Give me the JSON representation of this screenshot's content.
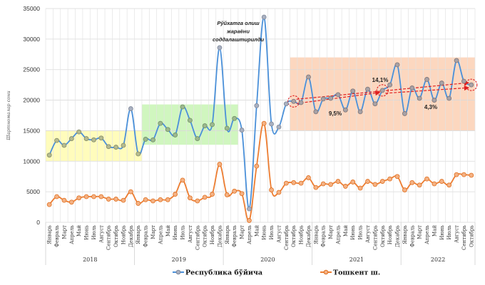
{
  "chart_data": {
    "type": "line",
    "title": "",
    "ylabel": "Шартномалар сони",
    "xlabel": "",
    "ylim": [
      0,
      35000
    ],
    "yticks": [
      0,
      5000,
      10000,
      15000,
      20000,
      25000,
      30000,
      35000
    ],
    "grid": true,
    "legend_position": "bottom",
    "years": [
      {
        "label": "2018",
        "months": 12
      },
      {
        "label": "2019",
        "months": 12
      },
      {
        "label": "2020",
        "months": 12
      },
      {
        "label": "2021",
        "months": 12
      },
      {
        "label": "2022",
        "months": 10
      }
    ],
    "categories": [
      "Январь",
      "Февраль",
      "Март",
      "Апрель",
      "Май",
      "Июнь",
      "Июль",
      "Август",
      "Сентябрь",
      "Октябрь",
      "Ноябрь",
      "Декабрь",
      "Январь",
      "Февраль",
      "Март",
      "Апрель",
      "Май",
      "Июнь",
      "Июль",
      "Август",
      "Сентябрь",
      "Октябрь",
      "Ноябрь",
      "Декабрь",
      "Январь",
      "Февраль",
      "Март",
      "Апрель",
      "Май",
      "Июнь",
      "Июль",
      "Август",
      "Сентябрь",
      "Октябрь",
      "Ноябрь",
      "Декабрь",
      "Январь",
      "Февраль",
      "Март",
      "Апрель",
      "Май",
      "Июнь",
      "Июль",
      "Август",
      "Сентябрь",
      "Октябрь",
      "Ноябрь",
      "Декабрь",
      "Январь",
      "Февраль",
      "Март",
      "Апрель",
      "Май",
      "Июнь",
      "Июль",
      "Август",
      "Сентябрь",
      "Октябрь"
    ],
    "series": [
      {
        "name": "Республика бўйича",
        "color": "#4a90d9",
        "marker_color": "#a9b0c0",
        "values": [
          11000,
          13400,
          12600,
          13700,
          14800,
          13700,
          13500,
          13800,
          12400,
          12300,
          12600,
          18600,
          11200,
          13600,
          13500,
          16200,
          15200,
          14300,
          18900,
          16700,
          13700,
          15800,
          16000,
          28600,
          15400,
          17000,
          15100,
          2200,
          19100,
          33600,
          16100,
          15600,
          19400,
          19800,
          19600,
          23800,
          18100,
          20200,
          20300,
          20900,
          18400,
          21500,
          18100,
          21800,
          19400,
          21600,
          22500,
          25800,
          17800,
          22000,
          20300,
          23400,
          20000,
          22800,
          20300,
          26500,
          23100,
          22500
        ]
      },
      {
        "name": "Тошкент ш.",
        "color": "#ed7d31",
        "marker_color": "#f4b183",
        "values": [
          2900,
          4200,
          3600,
          3300,
          4000,
          4200,
          4200,
          4200,
          3800,
          3800,
          3600,
          5000,
          3100,
          3700,
          3500,
          3700,
          3700,
          4600,
          6900,
          4000,
          3500,
          4100,
          4600,
          9500,
          4500,
          5100,
          4700,
          300,
          9200,
          16200,
          5300,
          4900,
          6400,
          6500,
          6400,
          7300,
          5700,
          6300,
          6200,
          6700,
          5900,
          6600,
          5600,
          6700,
          6200,
          6700,
          7100,
          7500,
          5300,
          6500,
          6100,
          7100,
          6300,
          6700,
          6100,
          7800,
          7800,
          7700
        ]
      }
    ],
    "highlight_bands": [
      {
        "name": "2018 band",
        "from_index": 0,
        "to_index": 12,
        "y_range": [
          10000,
          15000
        ],
        "color": "#fffbb0"
      },
      {
        "name": "2019 band",
        "from_index": 13,
        "to_index": 25,
        "y_range": [
          12700,
          19300
        ],
        "color": "#c8f5b4"
      },
      {
        "name": "2020-2022 band",
        "from_index": 33,
        "to_index": 57,
        "y_range": [
          15000,
          27000
        ],
        "color": "#fbd0b4"
      }
    ],
    "annotations": [
      {
        "text_lines": [
          "Рўйхатга олиш",
          "жараёни",
          "соддалаштирилди"
        ],
        "near_index": 27
      },
      {
        "text": "9,5%",
        "near_index": 38
      },
      {
        "text": "14,1%",
        "near_index": 45
      },
      {
        "text": "4,3%",
        "near_index": 53
      }
    ],
    "trend_arrows": [
      {
        "from_index": 33,
        "to_index": 45,
        "label": "9,5%"
      },
      {
        "from_index": 33,
        "to_index": 57,
        "label": "14,1%"
      },
      {
        "from_index": 45,
        "to_index": 57,
        "label": "4,3%"
      }
    ],
    "circled_points": [
      33,
      45,
      57
    ]
  }
}
